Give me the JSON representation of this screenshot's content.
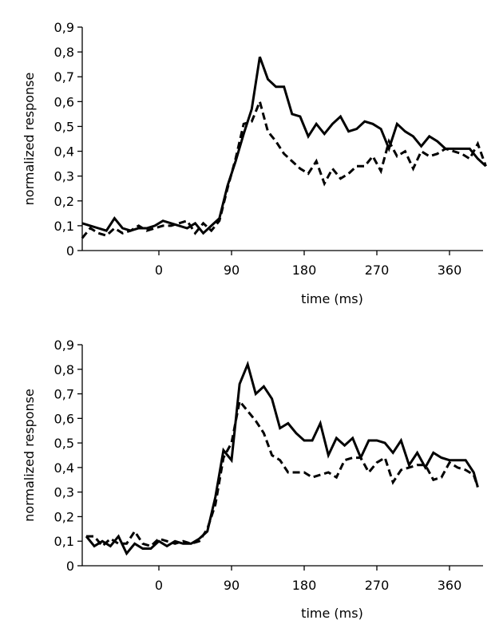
{
  "chart_data": [
    {
      "type": "line",
      "title": "",
      "xlabel": "time (ms)",
      "ylabel": "normalized response",
      "xlim": [
        -100,
        415
      ],
      "ylim": [
        0,
        0.9
      ],
      "xticks": [
        0,
        90,
        180,
        270,
        360
      ],
      "xtick_labels": [
        "0",
        "90",
        "180",
        "270",
        "360"
      ],
      "yticks": [
        0,
        0.1,
        0.2,
        0.3,
        0.4,
        0.5,
        0.6,
        0.7,
        0.8,
        0.9
      ],
      "ytick_labels": [
        "0",
        "0,1",
        "0,2",
        "0,3",
        "0,4",
        "0,5",
        "0,6",
        "0,7",
        "0,8",
        "0,9"
      ],
      "grid": false,
      "series": [
        {
          "style": "solid",
          "x": [
            -95,
            -85,
            -75,
            -65,
            -55,
            -45,
            -35,
            -25,
            -15,
            -5,
            5,
            15,
            25,
            35,
            45,
            55,
            65,
            75,
            85,
            95,
            105,
            115,
            125,
            135,
            145,
            155,
            165,
            175,
            185,
            195,
            205,
            215,
            225,
            235,
            245,
            255,
            265,
            275,
            285,
            295,
            305,
            315,
            325,
            335,
            345,
            355,
            365,
            375,
            385,
            395,
            405
          ],
          "values": [
            0.11,
            0.1,
            0.09,
            0.08,
            0.13,
            0.09,
            0.08,
            0.09,
            0.09,
            0.1,
            0.12,
            0.11,
            0.1,
            0.09,
            0.11,
            0.07,
            0.1,
            0.13,
            0.26,
            0.36,
            0.47,
            0.57,
            0.78,
            0.69,
            0.66,
            0.66,
            0.55,
            0.54,
            0.46,
            0.51,
            0.47,
            0.51,
            0.54,
            0.48,
            0.49,
            0.52,
            0.51,
            0.49,
            0.41,
            0.51,
            0.48,
            0.46,
            0.42,
            0.46,
            0.44,
            0.41,
            0.41,
            0.41,
            0.41,
            0.37,
            0.34
          ]
        },
        {
          "style": "dashed",
          "x": [
            -95,
            -85,
            -75,
            -65,
            -55,
            -45,
            -35,
            -25,
            -15,
            -5,
            5,
            15,
            25,
            35,
            45,
            55,
            65,
            75,
            85,
            95,
            105,
            115,
            125,
            135,
            145,
            155,
            165,
            175,
            185,
            195,
            205,
            215,
            225,
            235,
            245,
            255,
            265,
            275,
            285,
            295,
            305,
            315,
            325,
            335,
            345,
            355,
            365,
            375,
            385,
            395,
            405
          ],
          "values": [
            0.05,
            0.09,
            0.07,
            0.06,
            0.09,
            0.07,
            0.08,
            0.1,
            0.08,
            0.09,
            0.1,
            0.1,
            0.11,
            0.12,
            0.07,
            0.11,
            0.08,
            0.12,
            0.25,
            0.37,
            0.51,
            0.52,
            0.6,
            0.48,
            0.44,
            0.39,
            0.36,
            0.33,
            0.31,
            0.36,
            0.27,
            0.33,
            0.29,
            0.31,
            0.34,
            0.34,
            0.38,
            0.32,
            0.44,
            0.38,
            0.4,
            0.33,
            0.4,
            0.38,
            0.39,
            0.41,
            0.4,
            0.39,
            0.37,
            0.43,
            0.34
          ]
        }
      ]
    },
    {
      "type": "line",
      "title": "",
      "xlabel": "time (ms)",
      "ylabel": "normalized response",
      "xlim": [
        -100,
        415
      ],
      "ylim": [
        0,
        0.9
      ],
      "xticks": [
        0,
        90,
        180,
        270,
        360
      ],
      "xtick_labels": [
        "0",
        "90",
        "180",
        "270",
        "360"
      ],
      "yticks": [
        0,
        0.1,
        0.2,
        0.3,
        0.4,
        0.5,
        0.6,
        0.7,
        0.8,
        0.9
      ],
      "ytick_labels": [
        "0",
        "0,1",
        "0,2",
        "0,3",
        "0,4",
        "0,5",
        "0,6",
        "0,7",
        "0,8",
        "0,9"
      ],
      "grid": false,
      "series": [
        {
          "style": "solid",
          "x": [
            -90,
            -80,
            -70,
            -60,
            -50,
            -40,
            -30,
            -20,
            -10,
            0,
            10,
            20,
            30,
            40,
            50,
            60,
            70,
            80,
            90,
            100,
            110,
            120,
            130,
            140,
            150,
            160,
            170,
            180,
            190,
            200,
            210,
            220,
            230,
            240,
            250,
            260,
            270,
            280,
            290,
            300,
            310,
            320,
            330,
            340,
            350,
            360,
            370,
            380,
            390,
            395
          ],
          "values": [
            0.12,
            0.08,
            0.1,
            0.08,
            0.12,
            0.05,
            0.09,
            0.07,
            0.07,
            0.1,
            0.08,
            0.1,
            0.09,
            0.09,
            0.11,
            0.14,
            0.28,
            0.47,
            0.43,
            0.74,
            0.82,
            0.7,
            0.73,
            0.68,
            0.56,
            0.58,
            0.54,
            0.51,
            0.51,
            0.58,
            0.45,
            0.52,
            0.49,
            0.52,
            0.44,
            0.51,
            0.51,
            0.5,
            0.46,
            0.51,
            0.41,
            0.46,
            0.4,
            0.46,
            0.44,
            0.43,
            0.43,
            0.43,
            0.38,
            0.32
          ]
        },
        {
          "style": "dashed",
          "x": [
            -90,
            -80,
            -70,
            -60,
            -50,
            -40,
            -30,
            -20,
            -10,
            0,
            10,
            20,
            30,
            40,
            50,
            60,
            70,
            80,
            90,
            100,
            110,
            120,
            130,
            140,
            150,
            160,
            170,
            180,
            190,
            200,
            210,
            220,
            230,
            240,
            250,
            260,
            270,
            280,
            290,
            300,
            310,
            320,
            330,
            340,
            350,
            360,
            370,
            380,
            390,
            395
          ],
          "values": [
            0.12,
            0.12,
            0.08,
            0.11,
            0.09,
            0.09,
            0.14,
            0.09,
            0.08,
            0.11,
            0.1,
            0.09,
            0.1,
            0.09,
            0.1,
            0.15,
            0.25,
            0.44,
            0.5,
            0.67,
            0.63,
            0.59,
            0.54,
            0.45,
            0.43,
            0.38,
            0.38,
            0.38,
            0.36,
            0.37,
            0.38,
            0.36,
            0.43,
            0.44,
            0.44,
            0.38,
            0.42,
            0.44,
            0.34,
            0.39,
            0.4,
            0.41,
            0.41,
            0.35,
            0.36,
            0.42,
            0.4,
            0.39,
            0.37,
            0.32
          ]
        }
      ]
    }
  ]
}
